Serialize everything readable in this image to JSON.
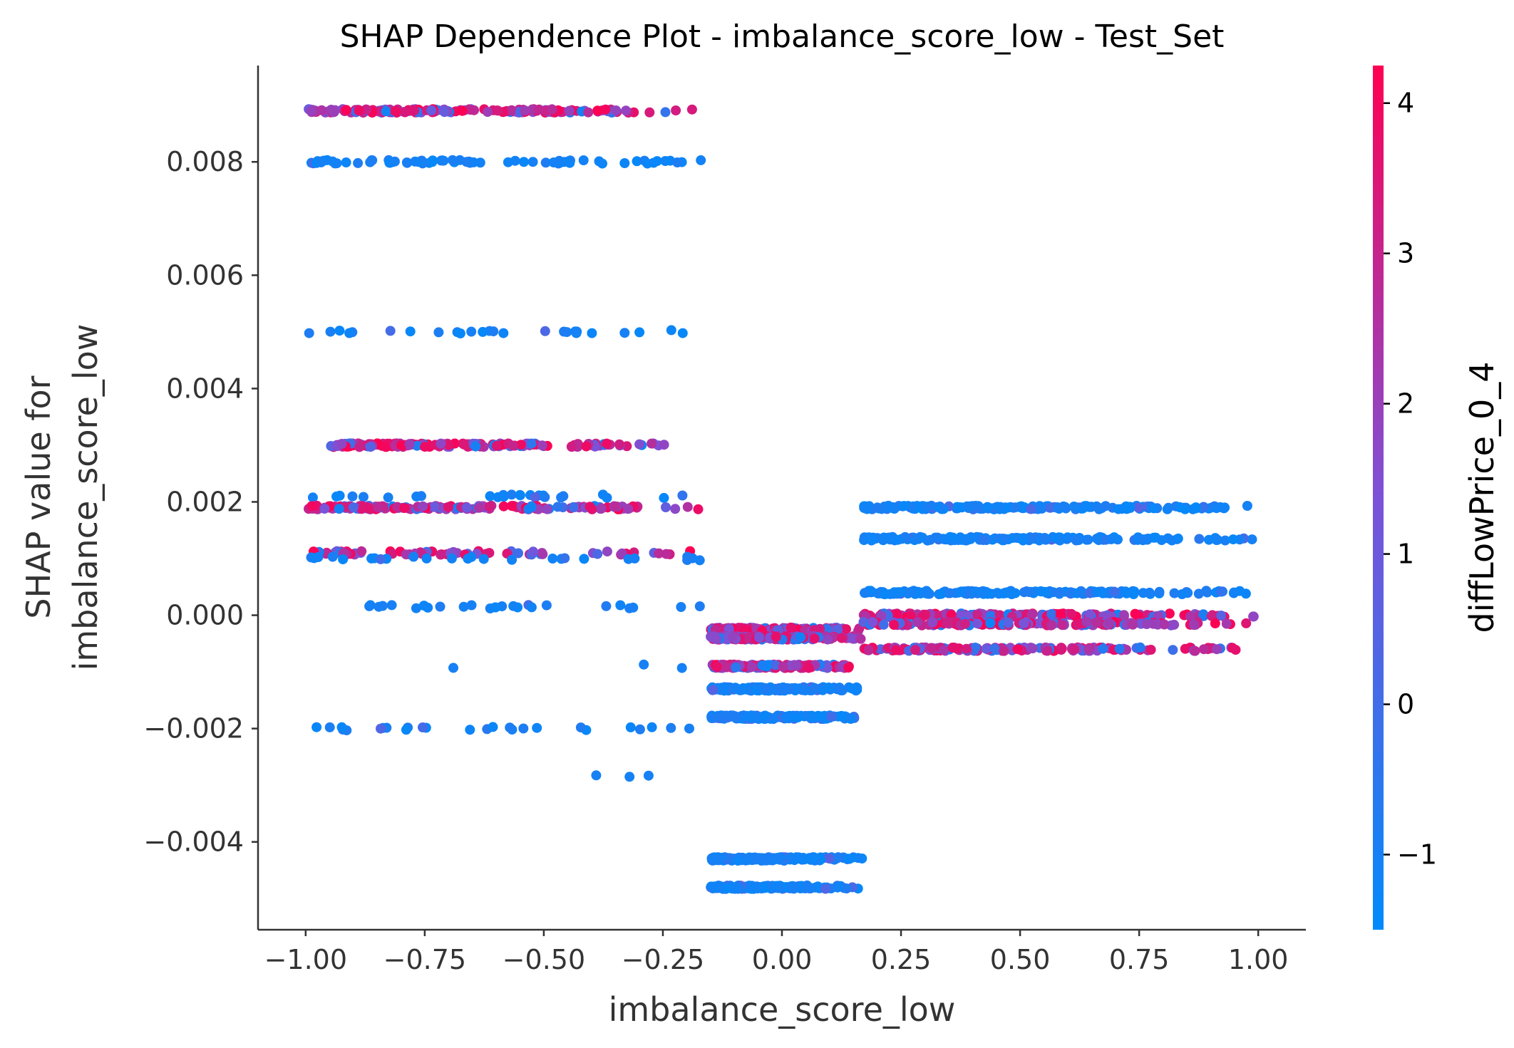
{
  "chart_data": {
    "type": "scatter",
    "title": "SHAP Dependence Plot - imbalance_score_low - Test_Set",
    "xlabel": "imbalance_score_low",
    "ylabel_line1": "SHAP value for",
    "ylabel_line2": "imbalance_score_low",
    "xlim": [
      -1.1,
      1.1
    ],
    "ylim": [
      -0.00555,
      0.0097
    ],
    "x_ticks": [
      {
        "value": -1.0,
        "label": "−1.00"
      },
      {
        "value": -0.75,
        "label": "−0.75"
      },
      {
        "value": -0.5,
        "label": "−0.50"
      },
      {
        "value": -0.25,
        "label": "−0.25"
      },
      {
        "value": 0.0,
        "label": "0.00"
      },
      {
        "value": 0.25,
        "label": "0.25"
      },
      {
        "value": 0.5,
        "label": "0.50"
      },
      {
        "value": 0.75,
        "label": "0.75"
      },
      {
        "value": 1.0,
        "label": "1.00"
      }
    ],
    "y_ticks": [
      {
        "value": 0.008,
        "label": "0.008"
      },
      {
        "value": 0.006,
        "label": "0.006"
      },
      {
        "value": 0.004,
        "label": "0.004"
      },
      {
        "value": 0.002,
        "label": "0.002"
      },
      {
        "value": 0.0,
        "label": "0.000"
      },
      {
        "value": -0.002,
        "label": "−0.002"
      },
      {
        "value": -0.004,
        "label": "−0.004"
      }
    ],
    "colorbar": {
      "label": "diffLowPrice_0_4",
      "range": [
        -1.5,
        4.25
      ],
      "ticks": [
        {
          "value": 4,
          "label": "4"
        },
        {
          "value": 3,
          "label": "3"
        },
        {
          "value": 2,
          "label": "2"
        },
        {
          "value": 1,
          "label": "1"
        },
        {
          "value": 0,
          "label": "0"
        },
        {
          "value": -1,
          "label": "−1"
        }
      ],
      "color_low": "#008bfb",
      "color_mid": "#7c52d8",
      "color_high": "#ff0052"
    },
    "bands": [
      {
        "x_range": [
          -1.0,
          -0.15
        ],
        "y": 0.0089,
        "color_mix": "high",
        "density": "dense"
      },
      {
        "x_range": [
          -1.0,
          -0.15
        ],
        "y": 0.008,
        "color_mix": "low",
        "density": "medium"
      },
      {
        "x_range": [
          -1.0,
          -0.15
        ],
        "y": 0.005,
        "color_mix": "low",
        "density": "sparse"
      },
      {
        "x_range": [
          -0.95,
          -0.15
        ],
        "y": 0.003,
        "color_mix": "high",
        "density": "dense"
      },
      {
        "x_range": [
          -1.0,
          -0.15
        ],
        "y": 0.0021,
        "color_mix": "low",
        "density": "sparse"
      },
      {
        "x_range": [
          -1.0,
          -0.15
        ],
        "y": 0.0019,
        "color_mix": "high",
        "density": "dense"
      },
      {
        "x_range": [
          -1.0,
          -0.15
        ],
        "y": 0.0011,
        "color_mix": "high",
        "density": "medium"
      },
      {
        "x_range": [
          -1.0,
          -0.15
        ],
        "y": 0.001,
        "color_mix": "low",
        "density": "sparse"
      },
      {
        "x_range": [
          -1.0,
          -0.15
        ],
        "y": 0.00015,
        "color_mix": "low",
        "density": "sparse"
      },
      {
        "x_range": [
          -1.0,
          -0.15
        ],
        "y": -0.002,
        "color_mix": "low",
        "density": "sparse"
      },
      {
        "x_range": [
          -0.15,
          0.17
        ],
        "y": -0.00025,
        "color_mix": "high",
        "density": "dense"
      },
      {
        "x_range": [
          -0.15,
          0.17
        ],
        "y": -0.0004,
        "color_mix": "high",
        "density": "dense"
      },
      {
        "x_range": [
          -0.15,
          0.17
        ],
        "y": -0.0009,
        "color_mix": "high",
        "density": "dense"
      },
      {
        "x_range": [
          -0.15,
          0.17
        ],
        "y": -0.0013,
        "color_mix": "low",
        "density": "dense"
      },
      {
        "x_range": [
          -0.15,
          0.17
        ],
        "y": -0.0018,
        "color_mix": "low",
        "density": "dense"
      },
      {
        "x_range": [
          -0.15,
          0.17
        ],
        "y": -0.0043,
        "color_mix": "low",
        "density": "dense"
      },
      {
        "x_range": [
          -0.15,
          0.17
        ],
        "y": -0.0048,
        "color_mix": "low",
        "density": "dense"
      },
      {
        "x_range": [
          0.17,
          1.0
        ],
        "y": 0.0019,
        "color_mix": "low",
        "density": "dense"
      },
      {
        "x_range": [
          0.17,
          1.0
        ],
        "y": 0.00135,
        "color_mix": "low",
        "density": "dense"
      },
      {
        "x_range": [
          0.17,
          1.0
        ],
        "y": 0.0004,
        "color_mix": "low",
        "density": "dense"
      },
      {
        "x_range": [
          0.17,
          1.0
        ],
        "y": 0.0,
        "color_mix": "high",
        "density": "dense"
      },
      {
        "x_range": [
          0.17,
          1.0
        ],
        "y": -0.00015,
        "color_mix": "high",
        "density": "dense"
      },
      {
        "x_range": [
          0.17,
          1.0
        ],
        "y": -0.0006,
        "color_mix": "high",
        "density": "dense"
      }
    ],
    "isolated_points": [
      {
        "x": -0.69,
        "y": -0.0009,
        "c": -1
      },
      {
        "x": -0.29,
        "y": -0.0009,
        "c": -1
      },
      {
        "x": -0.21,
        "y": -0.0009,
        "c": -1
      },
      {
        "x": -0.39,
        "y": -0.00285,
        "c": -1
      },
      {
        "x": -0.32,
        "y": -0.00285,
        "c": -1
      },
      {
        "x": -0.28,
        "y": -0.00285,
        "c": -1
      }
    ]
  }
}
